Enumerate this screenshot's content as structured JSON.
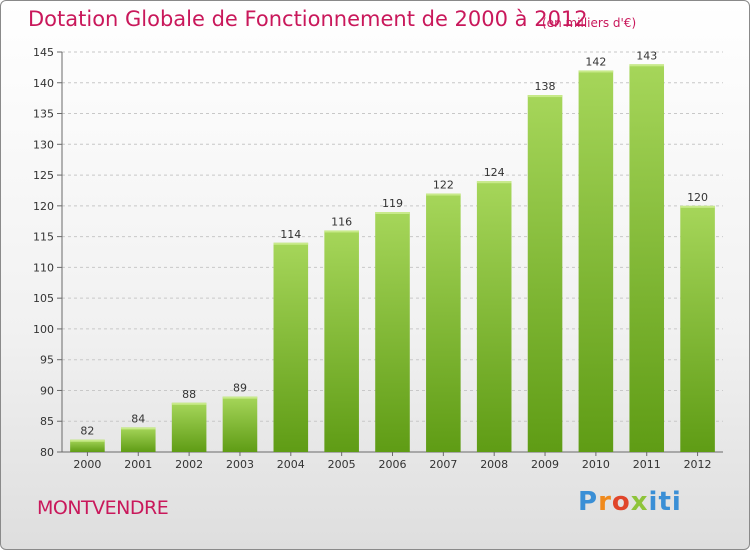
{
  "title": "Dotation Globale de Fonctionnement de 2000 à 2012",
  "unit_note": "(en milliers d'€)",
  "commune": "MONTVENDRE",
  "logo_text": "Proxiti",
  "colors": {
    "title": "#c9185b",
    "bar_light": "#a6d65a",
    "bar_dark": "#5f9c15",
    "grid": "#c8c8c8",
    "axis": "#6a6a6a",
    "label": "#333333"
  },
  "chart_data": {
    "type": "bar",
    "title": "Dotation Globale de Fonctionnement de 2000 à 2012",
    "subtitle": "(en milliers d'€)",
    "categories": [
      "2000",
      "2001",
      "2002",
      "2003",
      "2004",
      "2005",
      "2006",
      "2007",
      "2008",
      "2009",
      "2010",
      "2011",
      "2012"
    ],
    "values": [
      82,
      84,
      88,
      89,
      114,
      116,
      119,
      122,
      124,
      138,
      142,
      143,
      120
    ],
    "ylim": [
      80,
      145
    ],
    "yticks": [
      80,
      85,
      90,
      95,
      100,
      105,
      110,
      115,
      120,
      125,
      130,
      135,
      140,
      145
    ],
    "grid": "horizontal dashed",
    "legend": "none",
    "data_labels": true
  }
}
